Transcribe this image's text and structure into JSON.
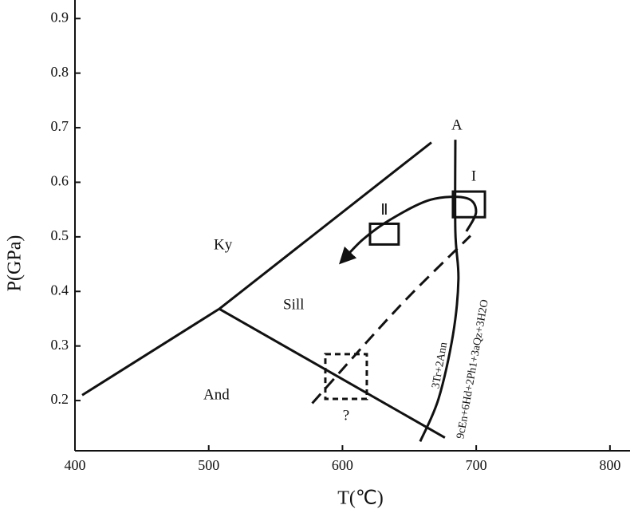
{
  "chart_data": {
    "type": "line",
    "xlabel": "T(℃)",
    "ylabel": "P(GPa)",
    "xlim": [
      400,
      815
    ],
    "ylim": [
      0.108,
      0.934
    ],
    "xticks": [
      400,
      500,
      600,
      700,
      800
    ],
    "yticks": [
      0.2,
      0.3,
      0.4,
      0.5,
      0.6,
      0.7,
      0.8,
      0.9
    ],
    "color": "#111111",
    "lines": [
      {
        "x": [
          507.9,
          666.5
        ],
        "y": [
          0.368,
          0.673
        ],
        "dashed": false,
        "arrow": false
      },
      {
        "x": [
          405.4,
          507.9
        ],
        "y": [
          0.21,
          0.368
        ],
        "dashed": false,
        "arrow": false
      },
      {
        "x": [
          507.9,
          676.6
        ],
        "y": [
          0.368,
          0.132
        ],
        "dashed": false,
        "arrow": false
      },
      {
        "x": [
          684.4,
          684.4,
          686.7,
          682.6,
          671.8,
          658.1
        ],
        "y": [
          0.678,
          0.51,
          0.422,
          0.32,
          0.203,
          0.125
        ],
        "dashed": false,
        "arrow": false
      },
      {
        "x": [
          577.4,
          642,
          695.7
        ],
        "y": [
          0.195,
          0.371,
          0.502
        ],
        "dashed": true,
        "arrow": false
      },
      {
        "x": [
          692.7,
          699.9,
          692.7,
          665.9,
          636.1,
          615.2,
          599.1
        ],
        "y": [
          0.51,
          0.546,
          0.571,
          0.568,
          0.532,
          0.495,
          0.454
        ],
        "dashed": false,
        "arrow": true
      }
    ],
    "regions": [
      {
        "name": "I",
        "x": [
          682.6,
          706.5
        ],
        "y": [
          0.536,
          0.583
        ],
        "dashed": false
      },
      {
        "name": "Ⅱ",
        "x": [
          620.6,
          642.0
        ],
        "y": [
          0.486,
          0.524
        ],
        "dashed": false
      },
      {
        "name": "?",
        "x": [
          587.2,
          618.2
        ],
        "y": [
          0.203,
          0.285
        ],
        "dashed": true
      }
    ],
    "annotations": [
      "Ky",
      "Sill",
      "And",
      "A",
      "3Tr+2Ann",
      "9cEn+6Hd+2Ph1+3aQz+3H2O"
    ]
  }
}
